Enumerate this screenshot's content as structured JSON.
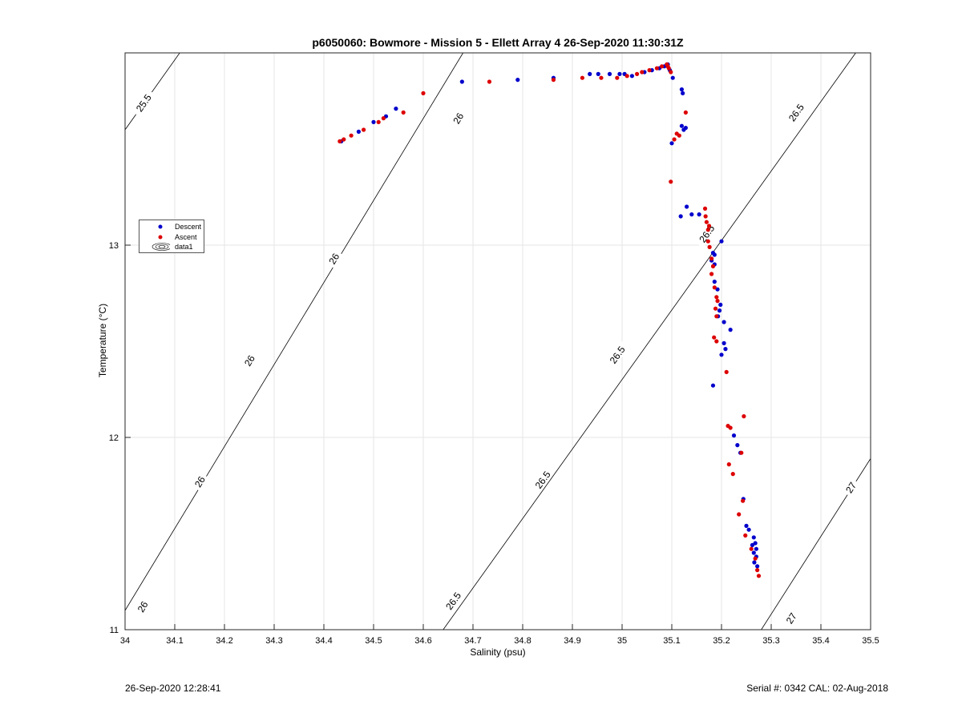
{
  "chart_data": {
    "type": "scatter",
    "title": "p6050060: Bowmore - Mission 5 - Ellett Array 4 26-Sep-2020 11:30:31Z",
    "xlabel": "Salinity (psu)",
    "ylabel": "Temperature (°C)",
    "xlim": [
      34,
      35.5
    ],
    "ylim": [
      11,
      14
    ],
    "xticks": [
      "34",
      "34.1",
      "34.2",
      "34.3",
      "34.4",
      "34.5",
      "34.6",
      "34.7",
      "34.8",
      "34.9",
      "35",
      "35.1",
      "35.2",
      "35.3",
      "35.4",
      "35.5"
    ],
    "yticks": [
      "11",
      "12",
      "13"
    ],
    "grid": true,
    "legend_position": "left",
    "legend": [
      "Descent",
      "Ascent",
      "data1"
    ],
    "series": [
      {
        "name": "Descent",
        "color": "#0000cc",
        "points": [
          [
            34.435,
            13.54
          ],
          [
            34.47,
            13.59
          ],
          [
            34.5,
            13.64
          ],
          [
            34.525,
            13.67
          ],
          [
            34.545,
            13.71
          ],
          [
            34.678,
            13.85
          ],
          [
            34.79,
            13.86
          ],
          [
            34.862,
            13.87
          ],
          [
            34.935,
            13.89
          ],
          [
            34.952,
            13.89
          ],
          [
            34.975,
            13.89
          ],
          [
            34.995,
            13.89
          ],
          [
            35.005,
            13.89
          ],
          [
            35.02,
            13.88
          ],
          [
            35.045,
            13.9
          ],
          [
            35.06,
            13.91
          ],
          [
            35.075,
            13.92
          ],
          [
            35.085,
            13.93
          ],
          [
            35.092,
            13.94
          ],
          [
            35.096,
            13.91
          ],
          [
            35.102,
            13.87
          ],
          [
            35.12,
            13.81
          ],
          [
            35.122,
            13.79
          ],
          [
            35.12,
            13.62
          ],
          [
            35.124,
            13.6
          ],
          [
            35.128,
            13.61
          ],
          [
            35.1,
            13.53
          ],
          [
            35.13,
            13.2
          ],
          [
            35.118,
            13.15
          ],
          [
            35.14,
            13.16
          ],
          [
            35.155,
            13.16
          ],
          [
            35.183,
            12.96
          ],
          [
            35.186,
            12.95
          ],
          [
            35.18,
            12.92
          ],
          [
            35.186,
            12.9
          ],
          [
            35.186,
            12.81
          ],
          [
            35.192,
            12.77
          ],
          [
            35.198,
            12.69
          ],
          [
            35.196,
            12.66
          ],
          [
            35.193,
            12.63
          ],
          [
            35.205,
            12.6
          ],
          [
            35.218,
            12.56
          ],
          [
            35.205,
            12.49
          ],
          [
            35.208,
            12.46
          ],
          [
            35.2,
            12.43
          ],
          [
            35.183,
            12.27
          ],
          [
            35.2,
            13.02
          ],
          [
            35.225,
            12.01
          ],
          [
            35.232,
            11.96
          ],
          [
            35.238,
            11.92
          ],
          [
            35.244,
            11.68
          ],
          [
            35.25,
            11.54
          ],
          [
            35.255,
            11.52
          ],
          [
            35.265,
            11.48
          ],
          [
            35.268,
            11.45
          ],
          [
            35.262,
            11.44
          ],
          [
            35.27,
            11.42
          ],
          [
            35.265,
            11.4
          ],
          [
            35.27,
            11.38
          ],
          [
            35.266,
            11.35
          ],
          [
            35.272,
            11.33
          ]
        ]
      },
      {
        "name": "Ascent",
        "color": "#dd0000",
        "points": [
          [
            34.432,
            13.54
          ],
          [
            34.44,
            13.55
          ],
          [
            34.455,
            13.57
          ],
          [
            34.48,
            13.6
          ],
          [
            34.51,
            13.64
          ],
          [
            34.52,
            13.66
          ],
          [
            34.56,
            13.69
          ],
          [
            34.6,
            13.79
          ],
          [
            34.733,
            13.85
          ],
          [
            34.862,
            13.86
          ],
          [
            34.92,
            13.87
          ],
          [
            34.958,
            13.87
          ],
          [
            34.99,
            13.87
          ],
          [
            35.01,
            13.88
          ],
          [
            35.03,
            13.89
          ],
          [
            35.04,
            13.9
          ],
          [
            35.055,
            13.91
          ],
          [
            35.07,
            13.92
          ],
          [
            35.08,
            13.93
          ],
          [
            35.09,
            13.94
          ],
          [
            35.092,
            13.93
          ],
          [
            35.094,
            13.92
          ],
          [
            35.098,
            13.9
          ],
          [
            35.128,
            13.69
          ],
          [
            35.11,
            13.58
          ],
          [
            35.105,
            13.55
          ],
          [
            35.115,
            13.57
          ],
          [
            35.098,
            13.33
          ],
          [
            35.167,
            13.19
          ],
          [
            35.168,
            13.15
          ],
          [
            35.17,
            13.12
          ],
          [
            35.175,
            13.1
          ],
          [
            35.173,
            13.08
          ],
          [
            35.173,
            13.02
          ],
          [
            35.176,
            12.99
          ],
          [
            35.18,
            12.93
          ],
          [
            35.183,
            12.89
          ],
          [
            35.18,
            12.85
          ],
          [
            35.186,
            12.78
          ],
          [
            35.19,
            12.73
          ],
          [
            35.192,
            12.71
          ],
          [
            35.188,
            12.67
          ],
          [
            35.19,
            12.63
          ],
          [
            35.185,
            12.52
          ],
          [
            35.19,
            12.5
          ],
          [
            35.21,
            12.34
          ],
          [
            35.213,
            12.06
          ],
          [
            35.218,
            12.05
          ],
          [
            35.24,
            11.92
          ],
          [
            35.245,
            12.11
          ],
          [
            35.215,
            11.86
          ],
          [
            35.223,
            11.81
          ],
          [
            35.235,
            11.6
          ],
          [
            35.248,
            11.49
          ],
          [
            35.26,
            11.42
          ],
          [
            35.268,
            11.37
          ],
          [
            35.272,
            11.31
          ],
          [
            35.275,
            11.28
          ],
          [
            35.243,
            11.67
          ]
        ]
      }
    ],
    "isopycnals": [
      {
        "sigma": 25.5,
        "label": "25.5",
        "line": [
          [
            34.0,
            13.6
          ],
          [
            34.11,
            14.0
          ]
        ],
        "labels_at": [
          [
            34.037,
            13.74
          ]
        ]
      },
      {
        "sigma": 26,
        "label": "26",
        "line": [
          [
            34.0,
            11.1
          ],
          [
            34.68,
            14.0
          ]
        ],
        "labels_at": [
          [
            34.035,
            11.12
          ],
          [
            34.15,
            11.77
          ],
          [
            34.25,
            12.4
          ],
          [
            34.42,
            12.93
          ],
          [
            34.67,
            13.66
          ]
        ]
      },
      {
        "sigma": 26.5,
        "label": "26.5",
        "line": [
          [
            34.64,
            11.0
          ],
          [
            35.47,
            14.0
          ]
        ],
        "labels_at": [
          [
            34.66,
            11.15
          ],
          [
            34.84,
            11.78
          ],
          [
            34.99,
            12.43
          ],
          [
            35.17,
            13.06
          ],
          [
            35.35,
            13.69
          ]
        ]
      },
      {
        "sigma": 27,
        "label": "27",
        "line": [
          [
            35.28,
            11.0
          ],
          [
            35.5,
            11.89
          ]
        ],
        "labels_at": [
          [
            35.34,
            11.06
          ],
          [
            35.46,
            11.74
          ]
        ]
      }
    ]
  },
  "footer": {
    "timestamp": "26-Sep-2020 12:28:41",
    "serial": "Serial #: 0342  CAL: 02-Aug-2018"
  }
}
